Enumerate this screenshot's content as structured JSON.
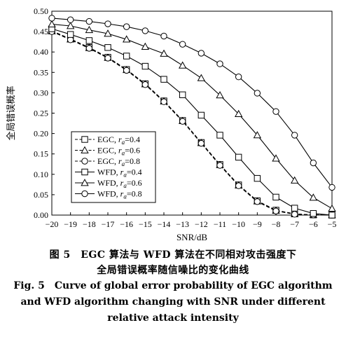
{
  "chart_data": {
    "type": "line",
    "title": "",
    "xlabel": "SNR/dB",
    "ylabel": "全局错误概率",
    "xlim": [
      -20,
      -5
    ],
    "ylim": [
      0,
      0.5
    ],
    "x": [
      -20,
      -19,
      -18,
      -17,
      -16,
      -15,
      -14,
      -13,
      -12,
      -11,
      -10,
      -9,
      -8,
      -7,
      -6,
      -5
    ],
    "xticks": [
      "−20",
      "−19",
      "−18",
      "−17",
      "−16",
      "−15",
      "−14",
      "−13",
      "−12",
      "−11",
      "−10",
      "−9",
      "−8",
      "−7",
      "−6",
      "−5"
    ],
    "yticks": [
      "0.00",
      "0.05",
      "0.10",
      "0.15",
      "0.20",
      "0.25",
      "0.30",
      "0.35",
      "0.40",
      "0.45",
      "0.50"
    ],
    "grid": false,
    "legend_position": "lower-left",
    "series": [
      {
        "name": "EGC, r_a=0.4",
        "legend_label": {
          "prefix": "EGC, ",
          "var": "r",
          "sub": "a",
          "suffix": "=0.4"
        },
        "line_style": "dashed",
        "marker": "square",
        "values": [
          0.452,
          0.432,
          0.411,
          0.387,
          0.357,
          0.322,
          0.28,
          0.232,
          0.178,
          0.124,
          0.074,
          0.035,
          0.012,
          0.003,
          0.0005,
          0.0
        ]
      },
      {
        "name": "EGC, r_a=0.6",
        "legend_label": {
          "prefix": "EGC, ",
          "var": "r",
          "sub": "a",
          "suffix": "=0.6"
        },
        "line_style": "dashed",
        "marker": "triangle",
        "values": [
          0.451,
          0.431,
          0.41,
          0.386,
          0.356,
          0.321,
          0.279,
          0.231,
          0.177,
          0.123,
          0.073,
          0.034,
          0.011,
          0.003,
          0.0005,
          0.0
        ]
      },
      {
        "name": "EGC, r_a=0.8",
        "legend_label": {
          "prefix": "EGC, ",
          "var": "r",
          "sub": "a",
          "suffix": "=0.8"
        },
        "line_style": "dashed",
        "marker": "circle",
        "values": [
          0.45,
          0.43,
          0.409,
          0.385,
          0.355,
          0.32,
          0.278,
          0.23,
          0.176,
          0.122,
          0.072,
          0.033,
          0.01,
          0.002,
          0.0004,
          0.0
        ]
      },
      {
        "name": "WFD, r_a=0.4",
        "legend_label": {
          "prefix": "WFD, ",
          "var": "r",
          "sub": "a",
          "suffix": "=0.4"
        },
        "line_style": "solid",
        "marker": "square",
        "values": [
          0.457,
          0.443,
          0.428,
          0.411,
          0.39,
          0.365,
          0.333,
          0.295,
          0.245,
          0.196,
          0.142,
          0.09,
          0.044,
          0.017,
          0.004,
          0.0
        ]
      },
      {
        "name": "WFD, r_a=0.6",
        "legend_label": {
          "prefix": "WFD, ",
          "var": "r",
          "sub": "a",
          "suffix": "=0.6"
        },
        "line_style": "solid",
        "marker": "triangle",
        "values": [
          0.468,
          0.464,
          0.454,
          0.445,
          0.431,
          0.413,
          0.396,
          0.367,
          0.336,
          0.294,
          0.248,
          0.196,
          0.139,
          0.085,
          0.043,
          0.016
        ]
      },
      {
        "name": "WFD, r_a=0.8",
        "legend_label": {
          "prefix": "WFD, ",
          "var": "r",
          "sub": "a",
          "suffix": "=0.8"
        },
        "line_style": "solid",
        "marker": "circle",
        "values": [
          0.483,
          0.479,
          0.475,
          0.469,
          0.462,
          0.452,
          0.439,
          0.419,
          0.397,
          0.371,
          0.339,
          0.299,
          0.254,
          0.196,
          0.128,
          0.068
        ]
      }
    ]
  },
  "captions": {
    "cn_line1": "图 5　EGC 算法与 WFD 算法在不同相对攻击强度下",
    "cn_line2": "全局错误概率随信噪比的变化曲线",
    "en_line1": "Fig. 5　Curve of global error probability of EGC algorithm",
    "en_line2": "and WFD algorithm changing with SNR under different",
    "en_line3": "relative attack intensity"
  }
}
